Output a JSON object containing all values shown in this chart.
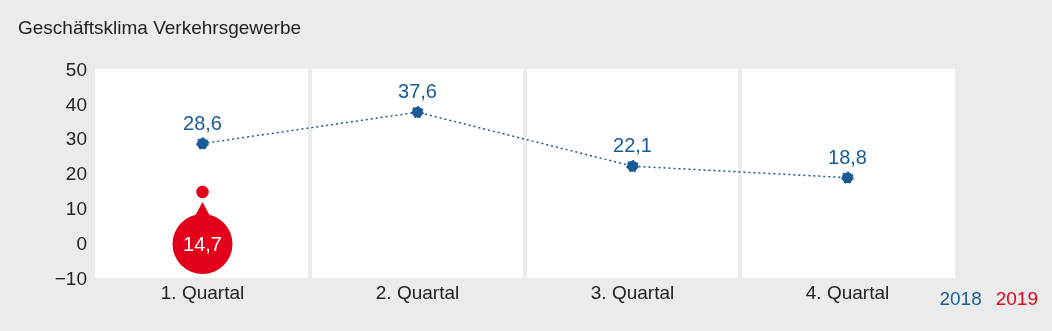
{
  "chart_data": {
    "type": "line",
    "title": "Geschäftsklima Verkehrsgewerbe",
    "categories": [
      "1. Quartal",
      "2. Quartal",
      "3. Quartal",
      "4. Quartal"
    ],
    "series": [
      {
        "name": "2018",
        "color": "#1a5a96",
        "values": [
          28.6,
          37.6,
          22.1,
          18.8
        ],
        "value_labels": [
          "28,6",
          "37,6",
          "22,1",
          "18,8"
        ],
        "line_style": "dotted"
      },
      {
        "name": "2019",
        "color": "#e2001a",
        "values": [
          14.7,
          null,
          null,
          null
        ],
        "value_labels": [
          "14,7",
          null,
          null,
          null
        ]
      }
    ],
    "ylim": [
      -10,
      50
    ],
    "yticks": [
      -10,
      0,
      10,
      20,
      30,
      40,
      50
    ],
    "grid": "x",
    "legend": "bottom right",
    "marker": "circle"
  }
}
